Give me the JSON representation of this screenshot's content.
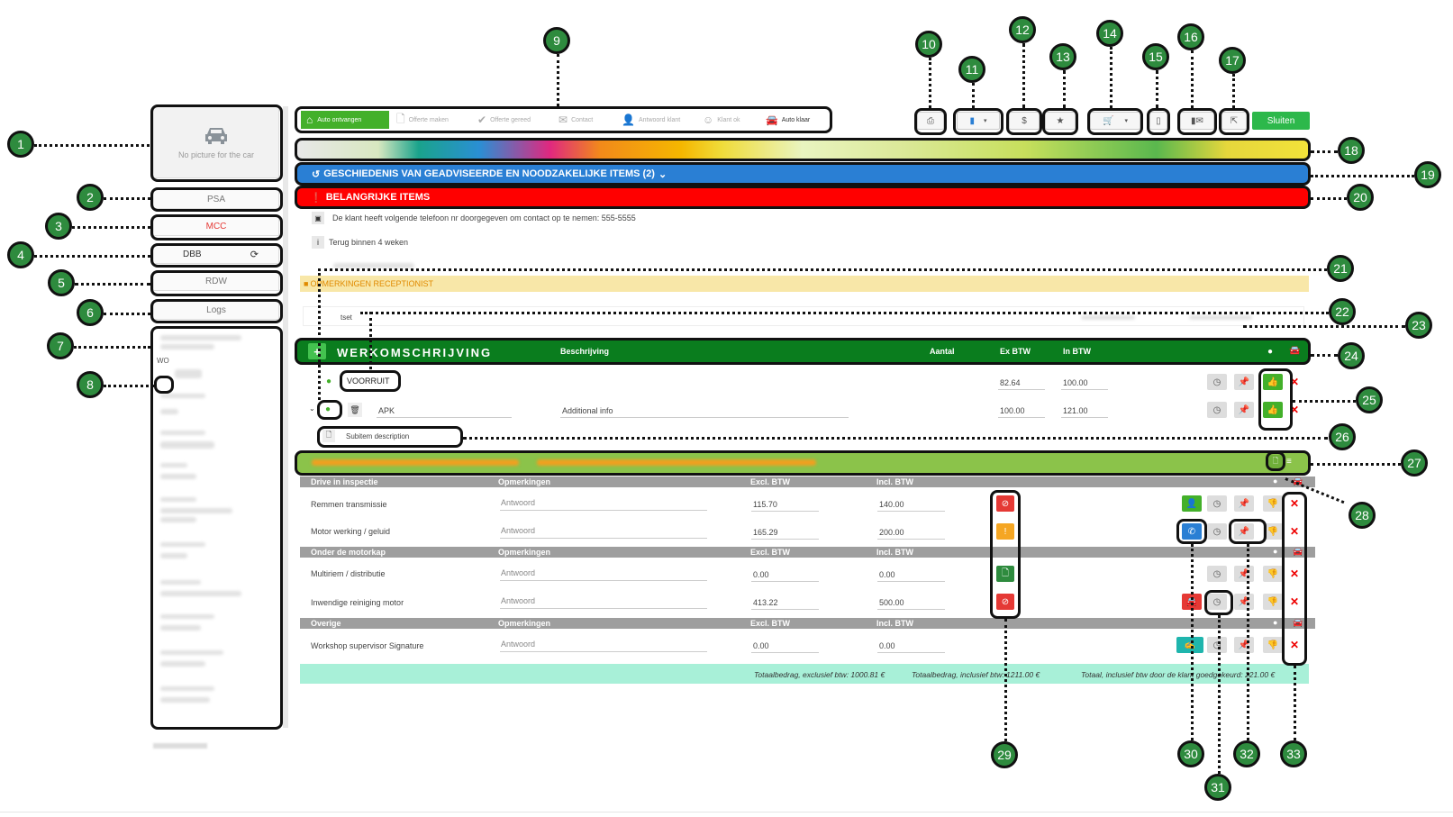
{
  "sidebar": {
    "picture_text": "No picture for the car",
    "buttons": [
      "PSA",
      "MCC",
      "DBB",
      "RDW",
      "Logs"
    ],
    "wo_label": "WO"
  },
  "workflow": {
    "steps": [
      "Auto ontvangen",
      "Offerte maken",
      "Offerte gereed",
      "Contact",
      "Antwoord klant",
      "Klant ok",
      "Auto klaar"
    ]
  },
  "toolbar": {
    "close_label": "Sluiten",
    "dollar": "$"
  },
  "sections": {
    "history": "GESCHIEDENIS VAN GEADVISEERDE EN NOODZAKELIJKE ITEMS (2)",
    "important": "BELANGRIJKE ITEMS",
    "notes": [
      "De klant heeft volgende telefoon nr doorgegeven om contact op te nemen: 555-5555",
      "Terug binnen 4 weken"
    ],
    "receptionist": "OPMERKINGEN RECEPTIONIST",
    "receptionist_note": "tset"
  },
  "work": {
    "title": "WERKOMSCHRIJVING",
    "headers": {
      "desc": "Beschrijving",
      "qty": "Aantal",
      "ex": "Ex BTW",
      "in": "In BTW"
    },
    "items": [
      {
        "name": "VOORRUIT",
        "info": "",
        "ex": "82.64",
        "in": "100.00"
      },
      {
        "name": "APK",
        "info": "Additional info",
        "ex": "100.00",
        "in": "121.00"
      }
    ],
    "subitem": "Subitem description"
  },
  "check": {
    "groups": [
      {
        "title": "Drive in inspectie",
        "col_remarks": "Opmerkingen",
        "col_ex": "Excl. BTW",
        "col_in": "Incl. BTW",
        "rows": [
          {
            "name": "Remmen transmissie",
            "remark": "Antwoord",
            "ex": "115.70",
            "in": "140.00",
            "status": "red"
          },
          {
            "name": "Motor werking / geluid",
            "remark": "Antwoord",
            "ex": "165.29",
            "in": "200.00",
            "status": "orange"
          }
        ]
      },
      {
        "title": "Onder de motorkap",
        "col_remarks": "Opmerkingen",
        "col_ex": "Excl. BTW",
        "col_in": "Incl. BTW",
        "rows": [
          {
            "name": "Multiriem / distributie",
            "remark": "Antwoord",
            "ex": "0.00",
            "in": "0.00",
            "status": "green"
          },
          {
            "name": "Inwendige reiniging motor",
            "remark": "Antwoord",
            "ex": "413.22",
            "in": "500.00",
            "status": "red"
          }
        ]
      },
      {
        "title": "Overige",
        "col_remarks": "Opmerkingen",
        "col_ex": "Excl. BTW",
        "col_in": "Incl. BTW",
        "rows": [
          {
            "name": "Workshop supervisor Signature",
            "remark": "Antwoord",
            "ex": "0.00",
            "in": "0.00",
            "status": ""
          }
        ]
      }
    ],
    "totals": {
      "excl": "Totaalbedrag, exclusief btw: 1000.81 €",
      "incl": "Totaalbedrag, inclusief btw: 1211.00 €",
      "approved": "Totaal, inclusief btw door de klant goedgekeurd: 221.00 €"
    }
  },
  "callouts": [
    "1",
    "2",
    "3",
    "4",
    "5",
    "6",
    "7",
    "8",
    "9",
    "10",
    "11",
    "12",
    "13",
    "14",
    "15",
    "16",
    "17",
    "18",
    "19",
    "20",
    "21",
    "22",
    "23",
    "24",
    "25",
    "26",
    "27",
    "28",
    "29",
    "30",
    "31",
    "32",
    "33"
  ],
  "colors": {
    "green": "#2e8b3e",
    "blue": "#2a7fd4",
    "red": "#ff0000",
    "lightgreen": "#8bc34a",
    "mint": "#a8f0d8"
  }
}
